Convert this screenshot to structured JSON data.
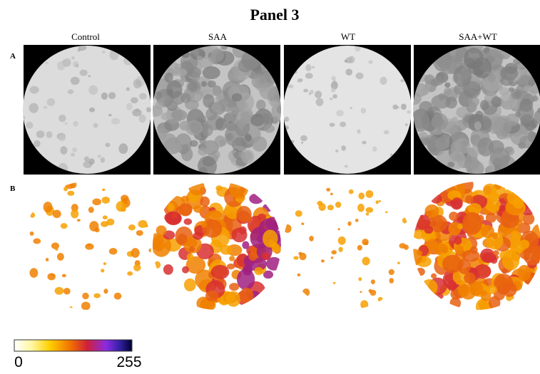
{
  "title": "Panel 3",
  "columns": [
    "Control",
    "SAA",
    "WT",
    "SAA+WT"
  ],
  "rows": [
    "A",
    "B"
  ],
  "colorbar": {
    "min_label": "0",
    "max_label": "255"
  }
}
